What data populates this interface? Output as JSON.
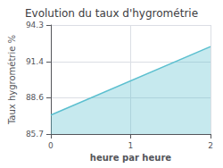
{
  "chart_data": {
    "type": "area",
    "title": "Evolution du taux d'hygrométrie",
    "xlabel": "heure par heure",
    "ylabel": "Taux hygrométrie %",
    "x": [
      0,
      2
    ],
    "values": [
      87.2,
      92.6
    ],
    "color": "#5bbfcf",
    "xlim": [
      0,
      2
    ],
    "xticks": [
      0,
      1,
      2
    ],
    "ylim": [
      85.7,
      94.3
    ],
    "yticks": [
      85.7,
      88.6,
      91.4,
      94.3
    ],
    "grid": true
  }
}
